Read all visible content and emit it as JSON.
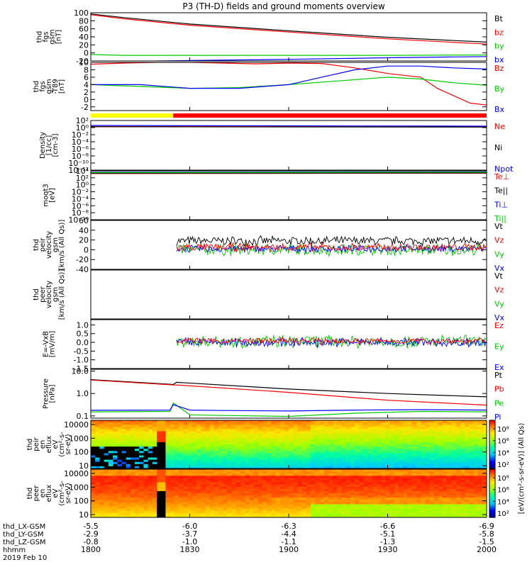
{
  "title": "P3 (TH-D) fields and ground moments overview",
  "colors": {
    "black": "#000000",
    "red": "#ff0000",
    "green": "#00cc00",
    "blue": "#0000ff",
    "yellow": "#ffff00"
  },
  "chart_data": {
    "type": "line",
    "panels": [
      {
        "id": "fgs",
        "ylabel": [
          "thd",
          "fgs",
          "gsm",
          "[nT]"
        ],
        "ylim": [
          -20,
          100
        ],
        "ticks": [
          "100",
          "80",
          "60",
          "40",
          "20",
          "0",
          "-20"
        ],
        "tick_values": [
          100,
          80,
          60,
          40,
          20,
          0,
          -20
        ],
        "legend": [
          {
            "name": "Bt",
            "color": "black"
          },
          {
            "name": "bz",
            "color": "red"
          },
          {
            "name": "by",
            "color": "green"
          },
          {
            "name": "bx",
            "color": "blue"
          }
        ],
        "series": [
          {
            "name": "Bt",
            "color": "black",
            "x": [
              0,
              10,
              30,
              60,
              90,
              120
            ],
            "y": [
              97,
              88,
              72,
              55,
              39,
              27
            ]
          },
          {
            "name": "bz",
            "color": "red",
            "x": [
              0,
              10,
              30,
              60,
              90,
              120
            ],
            "y": [
              95,
              85,
              69,
              52,
              35,
              22
            ]
          },
          {
            "name": "by",
            "color": "green",
            "x": [
              0,
              10,
              30,
              60,
              90,
              120
            ],
            "y": [
              -4,
              -6,
              -6,
              -6,
              -6,
              -5
            ]
          },
          {
            "name": "bx",
            "color": "blue",
            "x": [
              0,
              10,
              30,
              60,
              90,
              120
            ],
            "y": [
              -22,
              -21,
              -19,
              -16,
              -12,
              -9
            ]
          }
        ]
      },
      {
        "id": "fgs_dsl",
        "ylabel": [
          "thd",
          "fgs",
          "gsm",
          "-T89",
          "[nT]"
        ],
        "ylim": [
          -3,
          10
        ],
        "ticks": [
          "10",
          "8",
          "6",
          "4",
          "2",
          "0",
          "-2"
        ],
        "tick_values": [
          10,
          8,
          6,
          4,
          2,
          0,
          -2
        ],
        "legend": [
          {
            "name": "Bz",
            "color": "red"
          },
          {
            "name": "By",
            "color": "green"
          },
          {
            "name": "Bx",
            "color": "blue"
          }
        ],
        "series": [
          {
            "name": "Bz",
            "color": "red",
            "x": [
              0,
              10,
              20,
              30,
              40,
              50,
              60,
              70,
              80,
              90,
              100,
              105,
              110,
              115,
              120
            ],
            "y": [
              9.5,
              9.8,
              10,
              10,
              9.8,
              9.6,
              9.8,
              9.7,
              8.5,
              7,
              6,
              3,
              1,
              -1,
              -1.5
            ]
          },
          {
            "name": "By",
            "color": "green",
            "x": [
              0,
              15,
              30,
              45,
              60,
              75,
              90,
              100,
              110,
              120
            ],
            "y": [
              4,
              3.5,
              3,
              3.2,
              4,
              5,
              6,
              5.5,
              4.5,
              3.8
            ]
          },
          {
            "name": "Bx",
            "color": "blue",
            "x": [
              0,
              15,
              30,
              45,
              60,
              70,
              80,
              90,
              100,
              110,
              120
            ],
            "y": [
              4,
              4,
              3,
              3,
              4,
              6,
              8,
              9,
              9,
              8.5,
              8.2
            ]
          }
        ]
      },
      {
        "id": "density",
        "ylabel": [
          "Density",
          "[1/cc]",
          "[cm-3]"
        ],
        "log": true,
        "ylim": [
          -12,
          2
        ],
        "ticks": [
          "10²",
          "10⁰",
          "10⁻²",
          "10⁻⁴",
          "10⁻⁶",
          "10⁻⁸",
          "10⁻¹⁰",
          "10⁻¹²"
        ],
        "tick_values": [
          2,
          0,
          -2,
          -4,
          -6,
          -8,
          -10,
          -12
        ],
        "legend": [
          {
            "name": "Ne",
            "color": "red"
          },
          {
            "name": "Ni",
            "color": "black"
          },
          {
            "name": "Npot",
            "color": "blue"
          }
        ],
        "series": [
          {
            "name": "Ne",
            "color": "red",
            "x": [
              0,
              120
            ],
            "y": [
              0.3,
              0.2
            ]
          },
          {
            "name": "Ni",
            "color": "black",
            "x": [
              0,
              120
            ],
            "y": [
              0.25,
              0.15
            ]
          },
          {
            "name": "Npot",
            "color": "blue",
            "x": [
              0,
              120
            ],
            "y": [
              0.6,
              0.4
            ]
          }
        ]
      },
      {
        "id": "temp",
        "ylabel": [
          "moqt3",
          "[eV]"
        ],
        "log": true,
        "ylim": [
          -10,
          4
        ],
        "ticks": [
          "10⁴",
          "10²",
          "10⁰",
          "10⁻²",
          "10⁻⁴",
          "10⁻⁶",
          "10⁻⁸",
          "10⁻¹⁰"
        ],
        "tick_values": [
          4,
          2,
          0,
          -2,
          -4,
          -6,
          -8,
          -10
        ],
        "legend": [
          {
            "name": "Te⊥",
            "color": "red"
          },
          {
            "name": "Te||",
            "color": "black"
          },
          {
            "name": "Ti⊥",
            "color": "blue"
          },
          {
            "name": "Ti||",
            "color": "green"
          }
        ],
        "series": [
          {
            "name": "Te⊥",
            "color": "red",
            "x": [
              0,
              120
            ],
            "y": [
              3.2,
              3.3
            ]
          },
          {
            "name": "Te||",
            "color": "black",
            "x": [
              0,
              120
            ],
            "y": [
              3.3,
              3.4
            ]
          },
          {
            "name": "Ti⊥",
            "color": "blue",
            "x": [
              0,
              120
            ],
            "y": [
              3.6,
              3.7
            ]
          },
          {
            "name": "Ti||",
            "color": "green",
            "x": [
              0,
              120
            ],
            "y": [
              3.5,
              3.6
            ]
          }
        ]
      },
      {
        "id": "peir_vel",
        "ylabel": [
          "thd",
          "peir",
          "velocity",
          "gsm",
          "[km/s (All Qs)]"
        ],
        "ylim": [
          -40,
          60
        ],
        "ticks": [
          "60",
          "40",
          "20",
          "0",
          "-20",
          "-40"
        ],
        "tick_values": [
          60,
          40,
          20,
          0,
          -20,
          -40
        ],
        "legend": [
          {
            "name": "Vt",
            "color": "black"
          },
          {
            "name": "Vz",
            "color": "red"
          },
          {
            "name": "Vy",
            "color": "green"
          },
          {
            "name": "Vx",
            "color": "blue"
          }
        ],
        "noise": [
          {
            "name": "Vt",
            "color": "black",
            "start": 26,
            "mean": 18,
            "amp": 9
          },
          {
            "name": "Vy",
            "color": "green",
            "start": 26,
            "mean": 0,
            "amp": 12
          },
          {
            "name": "Vx",
            "color": "blue",
            "start": 26,
            "mean": 2,
            "amp": 7
          },
          {
            "name": "Vz",
            "color": "red",
            "start": 26,
            "mean": 5,
            "amp": 8
          }
        ]
      },
      {
        "id": "peer_vel",
        "ylabel": [
          "thd",
          "peer",
          "velocity",
          "gsm",
          "[km/s (All Qs)]"
        ],
        "ylim": [
          0,
          1
        ],
        "ticks": [],
        "tick_values": [],
        "legend": [
          {
            "name": "Vt",
            "color": "black"
          },
          {
            "name": "Vz",
            "color": "red"
          },
          {
            "name": "Vy",
            "color": "green"
          },
          {
            "name": "Vx",
            "color": "blue"
          }
        ]
      },
      {
        "id": "efield",
        "ylabel": [
          "E=-VxB",
          "[mV/m]"
        ],
        "ylim": [
          -1.5,
          1.3
        ],
        "ticks": [
          "1.0",
          "0.5",
          "0.0",
          "-0.5",
          "-1.0",
          "-1.5"
        ],
        "tick_values": [
          1.0,
          0.5,
          0.0,
          -0.5,
          -1.0,
          -1.5
        ],
        "legend": [
          {
            "name": "Ez",
            "color": "red"
          },
          {
            "name": "Ey",
            "color": "green"
          },
          {
            "name": "Ex",
            "color": "blue"
          }
        ],
        "noise": [
          {
            "name": "Ey",
            "color": "green",
            "start": 26,
            "mean": 0.05,
            "amp": 0.35
          },
          {
            "name": "Ex",
            "color": "blue",
            "start": 26,
            "mean": 0.0,
            "amp": 0.25
          },
          {
            "name": "Ez",
            "color": "red",
            "start": 26,
            "mean": 0.08,
            "amp": 0.18
          }
        ]
      },
      {
        "id": "pressure",
        "ylabel": [
          "Pressure",
          "[nPa]"
        ],
        "log": true,
        "ylim": [
          -1.1,
          1.08
        ],
        "ticks": [
          "10.0",
          "1.0",
          "0.1"
        ],
        "tick_values": [
          1,
          0,
          -1
        ],
        "legend": [
          {
            "name": "Pt",
            "color": "black"
          },
          {
            "name": "Pb",
            "color": "red"
          },
          {
            "name": "Pe",
            "color": "green"
          },
          {
            "name": "Pi",
            "color": "blue"
          }
        ],
        "series": [
          {
            "name": "Pt",
            "color": "black",
            "x": [
              0,
              25,
              26,
              60,
              90,
              120
            ],
            "y": [
              0.62,
              0.4,
              0.5,
              0.2,
              0.0,
              -0.15
            ]
          },
          {
            "name": "Pb",
            "color": "red",
            "x": [
              0,
              25,
              26,
              60,
              90,
              120
            ],
            "y": [
              0.6,
              0.38,
              0.38,
              0.05,
              -0.3,
              -0.52
            ]
          },
          {
            "name": "Pe",
            "color": "green",
            "x": [
              0,
              24,
              25,
              30,
              40,
              60,
              80,
              100,
              120
            ],
            "y": [
              -0.82,
              -0.8,
              -0.42,
              -0.95,
              -0.98,
              -1.02,
              -0.88,
              -0.8,
              -0.82
            ]
          },
          {
            "name": "Pi",
            "color": "blue",
            "x": [
              0,
              24,
              25,
              30,
              40,
              60,
              80,
              100,
              120
            ],
            "y": [
              -0.75,
              -0.74,
              -0.5,
              -0.74,
              -0.76,
              -0.78,
              -0.74,
              -0.72,
              -0.74
            ]
          }
        ]
      },
      {
        "id": "peir_spec",
        "type": "heatmap",
        "ylabel": [
          "thd",
          "peir",
          "en",
          "eflux",
          "eV",
          "(cm²-s-",
          "sr-eV)"
        ],
        "log": true,
        "ylim": [
          0.8,
          4.3
        ],
        "ticks": [
          "10000",
          "1000",
          "100",
          "10"
        ],
        "tick_values": [
          4,
          3,
          2,
          1
        ]
      },
      {
        "id": "peer_spec",
        "type": "heatmap",
        "ylabel": [
          "thd",
          "peer",
          "en",
          "eflux",
          "eV",
          "(cm²-s-",
          "sr-eV)"
        ],
        "log": true,
        "ylim": [
          0.8,
          4.3
        ],
        "ticks": [
          "10000",
          "1000",
          "100",
          "10"
        ],
        "tick_values": [
          4,
          3,
          2,
          1
        ]
      }
    ],
    "colorbar": {
      "label": "[eV/(cm²-s-sr-eV)] (All Qs)",
      "ticks_top": [
        "10⁸",
        "10⁶",
        "10⁴",
        "10²"
      ],
      "ticks_bottom": [
        "10⁸",
        "10⁶",
        "10⁴",
        "10²"
      ]
    },
    "x_axis": {
      "xlim": [
        0,
        120
      ],
      "tick_values": [
        0,
        30,
        60,
        90,
        120
      ],
      "rows": [
        {
          "label": "thd_LX-GSM",
          "values": [
            "-5.5",
            "-6.0",
            "-6.3",
            "-6.6",
            "-6.9"
          ]
        },
        {
          "label": "thd_LY-GSM",
          "values": [
            "-2.9",
            "-3.7",
            "-4.4",
            "-5.1",
            "-5.8"
          ]
        },
        {
          "label": "thd_LZ-GSM",
          "values": [
            "-0.8",
            "-1.0",
            "-1.1",
            "-1.3",
            "-1.5"
          ]
        },
        {
          "label": "hhmm",
          "values": [
            "1800",
            "1830",
            "1900",
            "1930",
            "2000"
          ]
        }
      ],
      "date": "2019 Feb 10"
    },
    "mode_bar": [
      {
        "x": [
          0,
          25
        ],
        "color": "yellow"
      },
      {
        "x": [
          25,
          120
        ],
        "color": "red"
      }
    ]
  }
}
